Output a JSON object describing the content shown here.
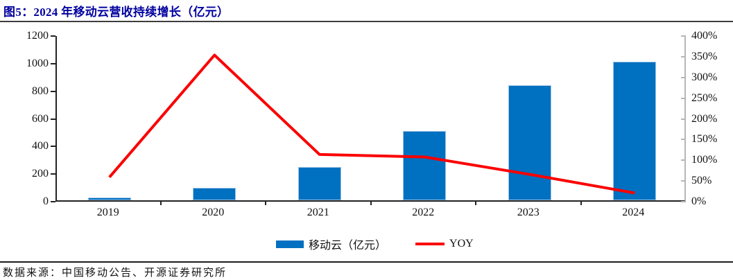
{
  "figure": {
    "title": "图5：2024 年移动云营收持续增长（亿元）",
    "source": "数据来源：中国移动公告、开源证券研究所"
  },
  "colors": {
    "bar": "#0070C0",
    "bar_border": "#9DC3E6",
    "line": "#FB0000",
    "title": "#0000A0",
    "left_axis": "#222222",
    "right_axis": "#B6B6B6"
  },
  "chart_data": {
    "type": "bar+line",
    "title": "图5：2024 年移动云营收持续增长（亿元）",
    "categories": [
      "2019",
      "2020",
      "2021",
      "2022",
      "2023",
      "2024"
    ],
    "series": [
      {
        "name": "移动云（亿元）",
        "type": "bar",
        "axis": "left",
        "values": [
          20,
          92,
          242,
          503,
          833,
          1004
        ]
      },
      {
        "name": "YOY",
        "type": "line",
        "axis": "right",
        "unit": "%",
        "values": [
          59,
          354,
          114,
          108,
          66,
          21
        ]
      }
    ],
    "left_axis": {
      "min": 0,
      "max": 1200,
      "tick_step": 200,
      "ticks": [
        "0",
        "200",
        "400",
        "600",
        "800",
        "1000",
        "1200"
      ]
    },
    "right_axis": {
      "min": 0,
      "max": 400,
      "tick_step": 50,
      "unit": "%",
      "ticks": [
        "0%",
        "50%",
        "100%",
        "150%",
        "200%",
        "250%",
        "300%",
        "350%",
        "400%"
      ]
    },
    "grid": false,
    "legend_position": "bottom"
  }
}
